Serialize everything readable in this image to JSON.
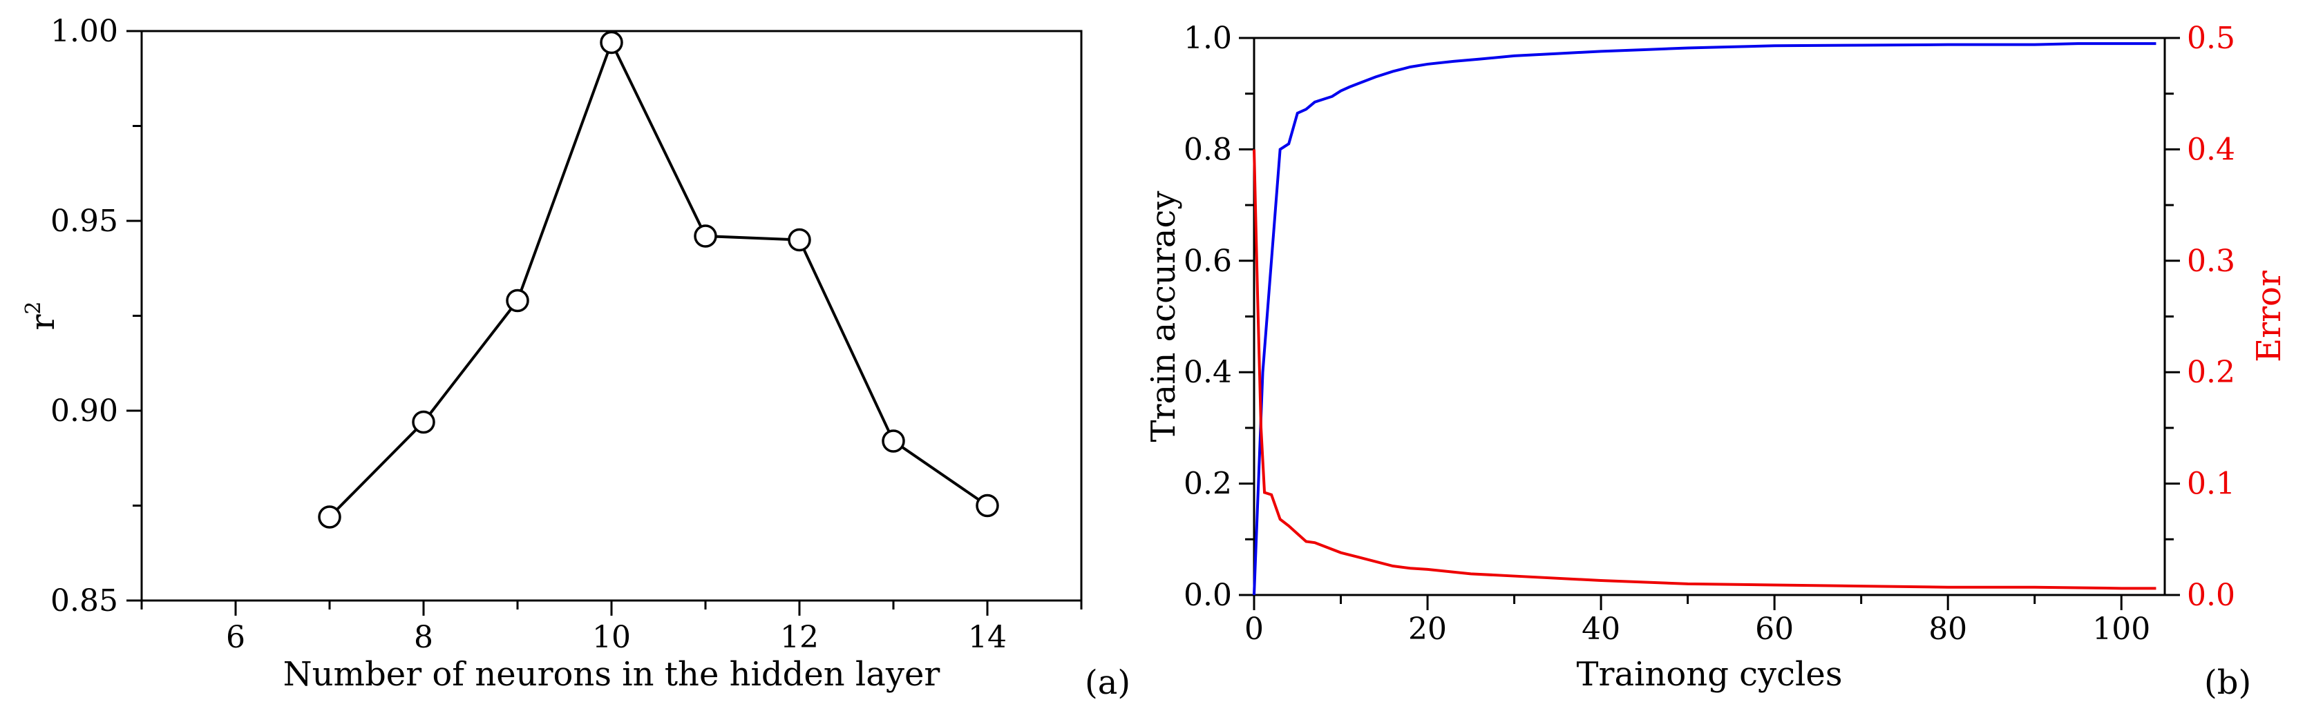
{
  "chart_data": [
    {
      "type": "line",
      "panel_label": "(a)",
      "xlabel": "Number of neurons in the hidden layer",
      "ylabel": "r",
      "ylabel_sup": "2",
      "xlim": [
        5,
        15
      ],
      "ylim": [
        0.85,
        1.0
      ],
      "xticks": [
        6,
        8,
        10,
        12,
        14
      ],
      "xticks_minor": [
        5,
        7,
        9,
        11,
        13,
        15
      ],
      "yticks": [
        0.85,
        0.9,
        0.95,
        1.0
      ],
      "yticks_minor": [
        0.875,
        0.925,
        0.975
      ],
      "ytick_labels": [
        "0.85",
        "0.90",
        "0.95",
        "1.00"
      ],
      "grid": false,
      "marker": "open-circle",
      "series": [
        {
          "color": "#000000",
          "x": [
            7,
            8,
            9,
            10,
            11,
            12,
            13,
            14
          ],
          "y": [
            0.872,
            0.897,
            0.929,
            0.997,
            0.946,
            0.945,
            0.892,
            0.875
          ]
        }
      ]
    },
    {
      "type": "line",
      "panel_label": "(b)",
      "xlabel": "Trainong cycles",
      "ylabel": "Train accuracy",
      "y2label": "Error",
      "xlim": [
        0,
        105
      ],
      "ylim": [
        0,
        1.0
      ],
      "y2lim": [
        0,
        0.5
      ],
      "xticks": [
        0,
        20,
        40,
        60,
        80,
        100
      ],
      "xticks_minor": [
        10,
        30,
        50,
        70,
        90
      ],
      "yticks": [
        0.0,
        0.2,
        0.4,
        0.6,
        0.8,
        1.0
      ],
      "ytick_labels": [
        "0.0",
        "0.2",
        "0.4",
        "0.6",
        "0.8",
        "1.0"
      ],
      "yticks_minor": [
        0.1,
        0.3,
        0.5,
        0.7,
        0.9
      ],
      "y2ticks": [
        0.0,
        0.1,
        0.2,
        0.3,
        0.4,
        0.5
      ],
      "y2tick_labels": [
        "0.0",
        "0.1",
        "0.2",
        "0.3",
        "0.4",
        "0.5"
      ],
      "y2ticks_minor": [
        0.05,
        0.15,
        0.25,
        0.35,
        0.45
      ],
      "grid": false,
      "series": [
        {
          "axis": "left",
          "color": "#0000ee",
          "x": [
            0,
            0.5,
            1,
            2,
            3,
            4,
            5,
            6,
            7,
            8,
            9,
            10,
            11,
            12,
            14,
            16,
            18,
            20,
            23,
            26,
            30,
            35,
            40,
            45,
            50,
            55,
            60,
            70,
            80,
            90,
            95,
            100,
            104
          ],
          "y": [
            0.0,
            0.2,
            0.4,
            0.6,
            0.8,
            0.81,
            0.865,
            0.872,
            0.885,
            0.89,
            0.895,
            0.905,
            0.912,
            0.918,
            0.93,
            0.94,
            0.948,
            0.953,
            0.958,
            0.962,
            0.968,
            0.972,
            0.976,
            0.979,
            0.982,
            0.984,
            0.986,
            0.987,
            0.988,
            0.988,
            0.99,
            0.99,
            0.99
          ]
        },
        {
          "axis": "right",
          "color": "#ee0000",
          "x": [
            0,
            0.4,
            0.8,
            1.2,
            2,
            3,
            4,
            5,
            6,
            7,
            8,
            10,
            12,
            14,
            16,
            18,
            20,
            25,
            30,
            40,
            50,
            60,
            70,
            80,
            90,
            100,
            104
          ],
          "y": [
            0.4,
            0.27,
            0.15,
            0.092,
            0.09,
            0.068,
            0.062,
            0.055,
            0.048,
            0.047,
            0.044,
            0.038,
            0.034,
            0.03,
            0.026,
            0.024,
            0.023,
            0.019,
            0.017,
            0.013,
            0.01,
            0.009,
            0.008,
            0.007,
            0.007,
            0.006,
            0.006
          ]
        }
      ]
    }
  ]
}
